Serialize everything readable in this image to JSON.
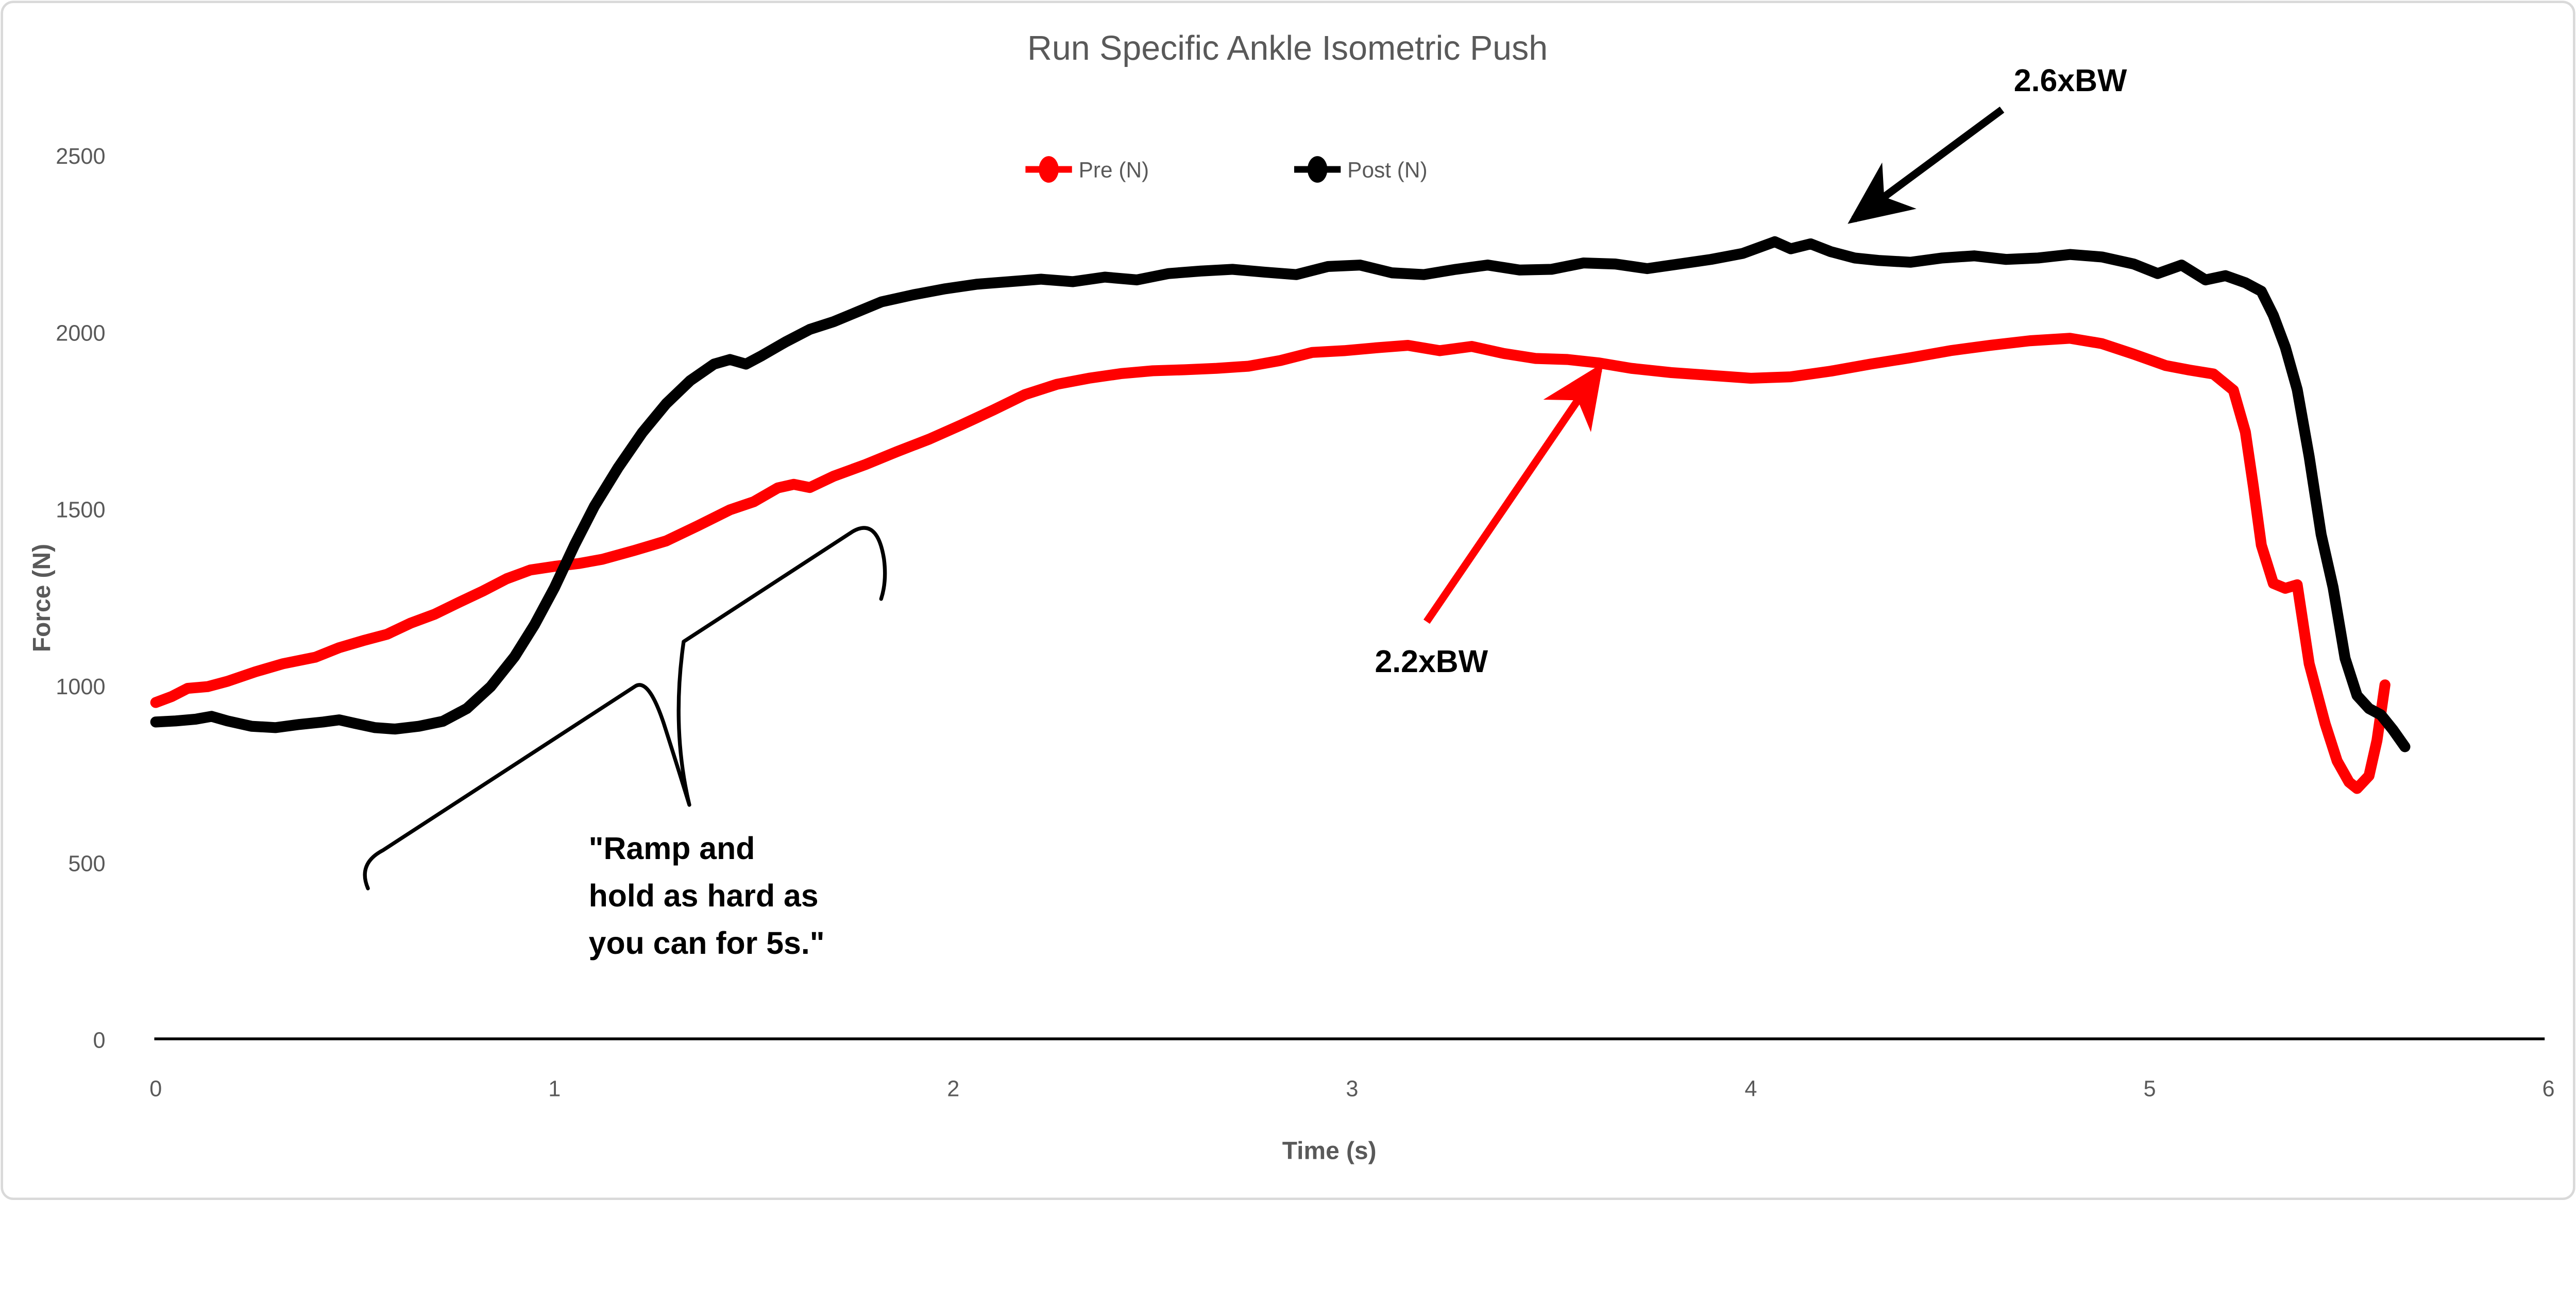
{
  "chart_data": {
    "type": "line",
    "title": "Run Specific Ankle Isometric Push",
    "xlabel": "Time (s)",
    "ylabel": "Force (N)",
    "xlim": [
      0,
      6
    ],
    "ylim": [
      0,
      2500
    ],
    "xticks": [
      "0",
      "1",
      "2",
      "3",
      "4",
      "5",
      "6"
    ],
    "yticks": [
      "0",
      "500",
      "1000",
      "1500",
      "2000",
      "2500"
    ],
    "grid": false,
    "legend_position": "top-center",
    "series": [
      {
        "name": "Pre (N)",
        "color": "#FF0000",
        "points": [
          [
            0,
            955
          ],
          [
            0.04,
            972
          ],
          [
            0.08,
            995
          ],
          [
            0.13,
            1000
          ],
          [
            0.18,
            1015
          ],
          [
            0.25,
            1042
          ],
          [
            0.32,
            1065
          ],
          [
            0.4,
            1083
          ],
          [
            0.46,
            1110
          ],
          [
            0.52,
            1130
          ],
          [
            0.58,
            1148
          ],
          [
            0.64,
            1180
          ],
          [
            0.7,
            1205
          ],
          [
            0.76,
            1238
          ],
          [
            0.82,
            1270
          ],
          [
            0.88,
            1305
          ],
          [
            0.94,
            1330
          ],
          [
            1,
            1340
          ],
          [
            1.06,
            1348
          ],
          [
            1.12,
            1360
          ],
          [
            1.2,
            1385
          ],
          [
            1.28,
            1412
          ],
          [
            1.36,
            1455
          ],
          [
            1.44,
            1500
          ],
          [
            1.5,
            1523
          ],
          [
            1.56,
            1562
          ],
          [
            1.6,
            1572
          ],
          [
            1.64,
            1563
          ],
          [
            1.7,
            1595
          ],
          [
            1.78,
            1628
          ],
          [
            1.86,
            1665
          ],
          [
            1.94,
            1700
          ],
          [
            2.02,
            1740
          ],
          [
            2.1,
            1782
          ],
          [
            2.18,
            1826
          ],
          [
            2.26,
            1855
          ],
          [
            2.34,
            1872
          ],
          [
            2.42,
            1885
          ],
          [
            2.5,
            1893
          ],
          [
            2.58,
            1896
          ],
          [
            2.66,
            1900
          ],
          [
            2.74,
            1906
          ],
          [
            2.82,
            1922
          ],
          [
            2.9,
            1945
          ],
          [
            2.98,
            1950
          ],
          [
            3.06,
            1958
          ],
          [
            3.14,
            1965
          ],
          [
            3.22,
            1950
          ],
          [
            3.3,
            1962
          ],
          [
            3.38,
            1942
          ],
          [
            3.46,
            1928
          ],
          [
            3.54,
            1925
          ],
          [
            3.62,
            1915
          ],
          [
            3.7,
            1900
          ],
          [
            3.8,
            1888
          ],
          [
            3.9,
            1880
          ],
          [
            4,
            1872
          ],
          [
            4.1,
            1876
          ],
          [
            4.2,
            1892
          ],
          [
            4.3,
            1912
          ],
          [
            4.4,
            1930
          ],
          [
            4.5,
            1950
          ],
          [
            4.6,
            1965
          ],
          [
            4.7,
            1978
          ],
          [
            4.8,
            1985
          ],
          [
            4.88,
            1970
          ],
          [
            4.96,
            1940
          ],
          [
            5.04,
            1908
          ],
          [
            5.1,
            1895
          ],
          [
            5.16,
            1884
          ],
          [
            5.21,
            1838
          ],
          [
            5.24,
            1720
          ],
          [
            5.26,
            1566
          ],
          [
            5.28,
            1400
          ],
          [
            5.31,
            1292
          ],
          [
            5.34,
            1278
          ],
          [
            5.37,
            1288
          ],
          [
            5.4,
            1065
          ],
          [
            5.44,
            895
          ],
          [
            5.47,
            790
          ],
          [
            5.5,
            730
          ],
          [
            5.52,
            712
          ],
          [
            5.55,
            748
          ],
          [
            5.57,
            848
          ],
          [
            5.59,
            1005
          ]
        ]
      },
      {
        "name": "Post (N)",
        "color": "#000000",
        "points": [
          [
            0,
            900
          ],
          [
            0.05,
            903
          ],
          [
            0.1,
            908
          ],
          [
            0.14,
            916
          ],
          [
            0.18,
            903
          ],
          [
            0.24,
            888
          ],
          [
            0.3,
            884
          ],
          [
            0.36,
            893
          ],
          [
            0.42,
            900
          ],
          [
            0.46,
            906
          ],
          [
            0.5,
            896
          ],
          [
            0.55,
            884
          ],
          [
            0.6,
            880
          ],
          [
            0.66,
            888
          ],
          [
            0.72,
            902
          ],
          [
            0.78,
            938
          ],
          [
            0.84,
            1000
          ],
          [
            0.9,
            1085
          ],
          [
            0.95,
            1175
          ],
          [
            1,
            1280
          ],
          [
            1.05,
            1400
          ],
          [
            1.1,
            1510
          ],
          [
            1.16,
            1620
          ],
          [
            1.22,
            1718
          ],
          [
            1.28,
            1800
          ],
          [
            1.34,
            1865
          ],
          [
            1.4,
            1912
          ],
          [
            1.44,
            1925
          ],
          [
            1.48,
            1912
          ],
          [
            1.52,
            1936
          ],
          [
            1.58,
            1975
          ],
          [
            1.64,
            2010
          ],
          [
            1.7,
            2032
          ],
          [
            1.76,
            2060
          ],
          [
            1.82,
            2088
          ],
          [
            1.9,
            2108
          ],
          [
            1.98,
            2125
          ],
          [
            2.06,
            2138
          ],
          [
            2.14,
            2145
          ],
          [
            2.22,
            2152
          ],
          [
            2.3,
            2145
          ],
          [
            2.38,
            2158
          ],
          [
            2.46,
            2150
          ],
          [
            2.54,
            2168
          ],
          [
            2.62,
            2175
          ],
          [
            2.7,
            2180
          ],
          [
            2.78,
            2172
          ],
          [
            2.86,
            2165
          ],
          [
            2.94,
            2188
          ],
          [
            3.02,
            2192
          ],
          [
            3.1,
            2170
          ],
          [
            3.18,
            2165
          ],
          [
            3.26,
            2180
          ],
          [
            3.34,
            2192
          ],
          [
            3.42,
            2178
          ],
          [
            3.5,
            2180
          ],
          [
            3.58,
            2198
          ],
          [
            3.66,
            2195
          ],
          [
            3.74,
            2182
          ],
          [
            3.82,
            2195
          ],
          [
            3.9,
            2208
          ],
          [
            3.98,
            2225
          ],
          [
            4.06,
            2258
          ],
          [
            4.1,
            2238
          ],
          [
            4.15,
            2252
          ],
          [
            4.2,
            2230
          ],
          [
            4.26,
            2212
          ],
          [
            4.32,
            2205
          ],
          [
            4.4,
            2200
          ],
          [
            4.48,
            2212
          ],
          [
            4.56,
            2218
          ],
          [
            4.64,
            2208
          ],
          [
            4.72,
            2212
          ],
          [
            4.8,
            2222
          ],
          [
            4.88,
            2215
          ],
          [
            4.96,
            2195
          ],
          [
            5.02,
            2168
          ],
          [
            5.08,
            2192
          ],
          [
            5.14,
            2150
          ],
          [
            5.19,
            2162
          ],
          [
            5.24,
            2142
          ],
          [
            5.28,
            2118
          ],
          [
            5.31,
            2050
          ],
          [
            5.34,
            1960
          ],
          [
            5.37,
            1840
          ],
          [
            5.4,
            1650
          ],
          [
            5.43,
            1430
          ],
          [
            5.46,
            1280
          ],
          [
            5.49,
            1080
          ],
          [
            5.52,
            975
          ],
          [
            5.55,
            938
          ],
          [
            5.58,
            920
          ],
          [
            5.61,
            878
          ],
          [
            5.64,
            830
          ]
        ]
      }
    ]
  },
  "annotations": {
    "post_peak_label": "2.6xBW",
    "pre_peak_label": "2.2xBW",
    "instruction": {
      "line1": "\"Ramp and",
      "line2": "hold as hard as",
      "line3": "you can for 5s.\""
    }
  },
  "colors": {
    "series_pre": "#FF0000",
    "series_post": "#000000",
    "text_gray": "#595959",
    "border_gray": "#D9D9D9",
    "axis_line": "#000000"
  }
}
